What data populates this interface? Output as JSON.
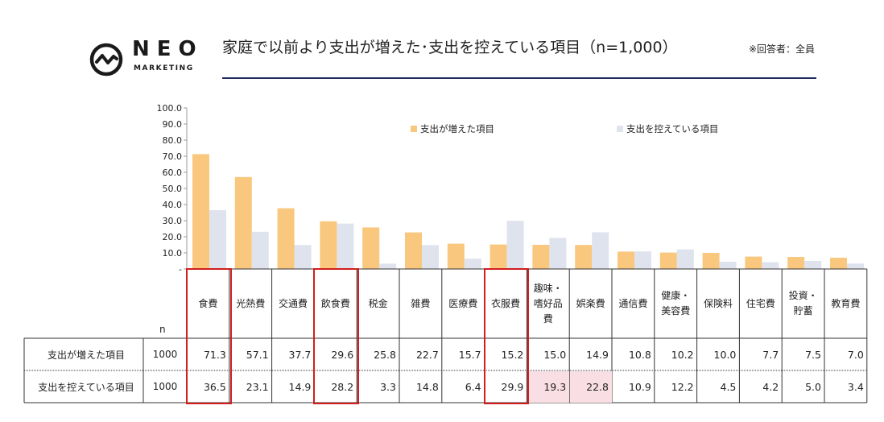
{
  "logo": {
    "word": "NEO",
    "sub": "MARKETING"
  },
  "header": {
    "title": "家庭で以前より支出が増えた･支出を控えている項目（n=1,000）",
    "note": "※回答者：全員"
  },
  "colors": {
    "increased": "#f9c77d",
    "reduced": "#dfe3ee",
    "highlight_box": "#d21e1e",
    "highlight_cell": "#f9dfe3",
    "title_rule": "#1d2b5a"
  },
  "chart_data": {
    "type": "bar",
    "categories": [
      "食費",
      "光熱費",
      "交通費",
      "飲食費",
      "税金",
      "雑費",
      "医療費",
      "衣服費",
      "趣味・嗜好品費",
      "娯楽費",
      "通信費",
      "健康・美容費",
      "保険料",
      "住宅費",
      "投資・貯蓄",
      "教育費"
    ],
    "category_lines": [
      [
        "食費"
      ],
      [
        "光熱費"
      ],
      [
        "交通費"
      ],
      [
        "飲食費"
      ],
      [
        "税金"
      ],
      [
        "雑費"
      ],
      [
        "医療費"
      ],
      [
        "衣服費"
      ],
      [
        "趣味・",
        "嗜好品",
        "費"
      ],
      [
        "娯楽費"
      ],
      [
        "通信費"
      ],
      [
        "健康・",
        "美容費"
      ],
      [
        "保険料"
      ],
      [
        "住宅費"
      ],
      [
        "投資・",
        "貯蓄"
      ],
      [
        "教育費"
      ]
    ],
    "series": [
      {
        "name": "支出が増えた項目",
        "values": [
          71.3,
          57.1,
          37.7,
          29.6,
          25.8,
          22.7,
          15.7,
          15.2,
          15.0,
          14.9,
          10.8,
          10.2,
          10.0,
          7.7,
          7.5,
          7.0
        ]
      },
      {
        "name": "支出を控えている項目",
        "values": [
          36.5,
          23.1,
          14.9,
          28.2,
          3.3,
          14.8,
          6.4,
          29.9,
          19.3,
          22.8,
          10.9,
          12.2,
          4.5,
          4.2,
          5.0,
          3.4
        ]
      }
    ],
    "ylim": [
      0,
      100
    ],
    "y_ticks": [
      "100.0",
      "90.0",
      "80.0",
      "70.0",
      "60.0",
      "50.0",
      "40.0",
      "30.0",
      "20.0",
      "10.0",
      "-"
    ],
    "legend_position": "top-right",
    "grid": false
  },
  "table": {
    "n_header": "n",
    "rows": [
      {
        "label": "支出が増えた項目",
        "n": "1000",
        "values": [
          "71.3",
          "57.1",
          "37.7",
          "29.6",
          "25.8",
          "22.7",
          "15.7",
          "15.2",
          "15.0",
          "14.9",
          "10.8",
          "10.2",
          "10.0",
          "7.7",
          "7.5",
          "7.0"
        ],
        "highlight": []
      },
      {
        "label": "支出を控えている項目",
        "n": "1000",
        "values": [
          "36.5",
          "23.1",
          "14.9",
          "28.2",
          "3.3",
          "14.8",
          "6.4",
          "29.9",
          "19.3",
          "22.8",
          "10.9",
          "12.2",
          "4.5",
          "4.2",
          "5.0",
          "3.4"
        ],
        "highlight": [
          8,
          9
        ]
      }
    ],
    "boxed_categories": [
      0,
      3,
      7
    ]
  }
}
